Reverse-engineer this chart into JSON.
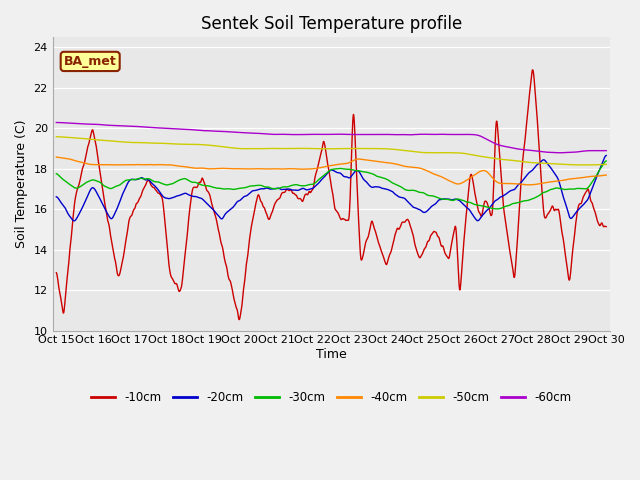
{
  "title": "Sentek Soil Temperature profile",
  "xlabel": "Time",
  "ylabel": "Soil Temperature (C)",
  "ylim": [
    10,
    24.5
  ],
  "yticks": [
    10,
    12,
    14,
    16,
    18,
    20,
    22,
    24
  ],
  "fig_bg": "#f0f0f0",
  "plot_bg": "#e8e8e8",
  "legend_labels": [
    "-10cm",
    "-20cm",
    "-30cm",
    "-40cm",
    "-50cm",
    "-60cm"
  ],
  "legend_colors": [
    "#cc0000",
    "#0000cc",
    "#00bb00",
    "#ff8800",
    "#cccc00",
    "#aa00cc"
  ],
  "annotation_text": "BA_met",
  "annotation_bg": "#ffff99",
  "annotation_border": "#882200",
  "xticklabels": [
    "Oct 15",
    "Oct 16",
    "Oct 17",
    "Oct 18",
    "Oct 19",
    "Oct 20",
    "Oct 21",
    "Oct 22",
    "Oct 23",
    "Oct 24",
    "Oct 25",
    "Oct 26",
    "Oct 27",
    "Oct 28",
    "Oct 29",
    "Oct 30"
  ],
  "n_points": 1500
}
